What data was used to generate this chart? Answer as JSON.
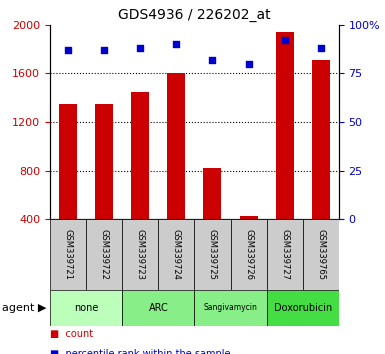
{
  "title": "GDS4936 / 226202_at",
  "samples": [
    "GSM339721",
    "GSM339722",
    "GSM339723",
    "GSM339724",
    "GSM339725",
    "GSM339726",
    "GSM339727",
    "GSM339765"
  ],
  "counts": [
    1350,
    1350,
    1450,
    1600,
    820,
    430,
    1940,
    1710
  ],
  "percentiles": [
    87,
    87,
    88,
    90,
    82,
    80,
    92,
    88
  ],
  "agent_groups": [
    {
      "label": "none",
      "start": 0,
      "end": 1,
      "color": "#bbffbb"
    },
    {
      "label": "ARC",
      "start": 2,
      "end": 3,
      "color": "#88ee88"
    },
    {
      "label": "Sangivamycin",
      "start": 4,
      "end": 5,
      "color": "#88ee88"
    },
    {
      "label": "Doxorubicin",
      "start": 6,
      "end": 7,
      "color": "#44dd44"
    }
  ],
  "bar_color": "#cc0000",
  "dot_color": "#0000cc",
  "ylim_left": [
    400,
    2000
  ],
  "ylim_right": [
    0,
    100
  ],
  "yticks_left": [
    400,
    800,
    1200,
    1600,
    2000
  ],
  "yticks_right": [
    0,
    25,
    50,
    75,
    100
  ],
  "ytick_labels_right": [
    "0",
    "25",
    "50",
    "75",
    "100%"
  ],
  "left_tick_color": "#cc0000",
  "right_tick_color": "#0000cc",
  "sample_bg_color": "#cccccc",
  "bar_width": 0.5,
  "legend_count_color": "#cc0000",
  "legend_percentile_color": "#0000cc",
  "grid_dotted_at": [
    800,
    1200,
    1600
  ],
  "sangivamycin_fontsize": 5.5,
  "agent_label_fontsize": 7,
  "sample_label_fontsize": 6
}
